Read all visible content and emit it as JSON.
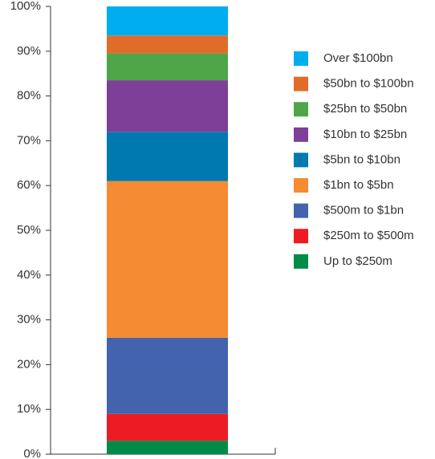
{
  "chart_data": {
    "type": "stacked_bar",
    "categories": [
      null
    ],
    "series": [
      {
        "name": "Up to $250m",
        "color": "#008c48",
        "values": [
          3
        ]
      },
      {
        "name": "$250m to $500m",
        "color": "#ed1c24",
        "values": [
          6
        ]
      },
      {
        "name": "$500m to $1bn",
        "color": "#4363ae",
        "values": [
          17
        ]
      },
      {
        "name": "$1bn to $5bn",
        "color": "#f58b33",
        "values": [
          35
        ]
      },
      {
        "name": "$5bn to $10bn",
        "color": "#0079ae",
        "values": [
          11
        ]
      },
      {
        "name": "$10bn to $25bn",
        "color": "#7e3f98",
        "values": [
          11.5
        ]
      },
      {
        "name": "$25bn to $50bn",
        "color": "#4ea648",
        "values": [
          6
        ]
      },
      {
        "name": "$50bn to $100bn",
        "color": "#e06c2a",
        "values": [
          4
        ]
      },
      {
        "name": "Over $100bn",
        "color": "#00adef",
        "values": [
          6.5
        ]
      }
    ],
    "ylim": [
      0,
      100
    ],
    "yticks": [
      {
        "value": 0,
        "label": "0%"
      },
      {
        "value": 10,
        "label": "10%"
      },
      {
        "value": 20,
        "label": "20%"
      },
      {
        "value": 30,
        "label": "30%"
      },
      {
        "value": 40,
        "label": "40%"
      },
      {
        "value": 50,
        "label": "50%"
      },
      {
        "value": 60,
        "label": "60%"
      },
      {
        "value": 70,
        "label": "70%"
      },
      {
        "value": 80,
        "label": "80%"
      },
      {
        "value": 90,
        "label": "90%"
      },
      {
        "value": 100,
        "label": "100%"
      }
    ],
    "legend": "right"
  }
}
